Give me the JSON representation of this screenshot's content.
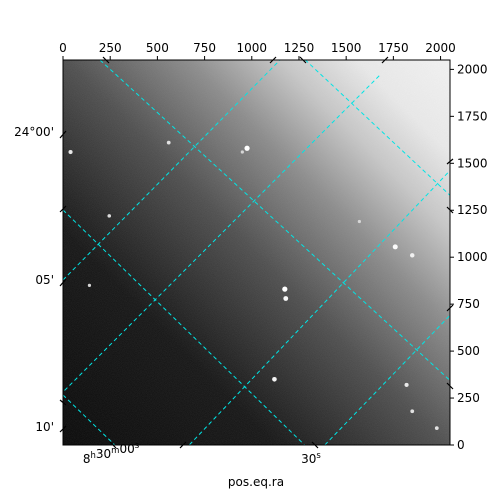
{
  "chart_data": {
    "type": "heatmap",
    "title": "",
    "xlabel": "pos.eq.ra",
    "ylabel": "",
    "pixel_axes": {
      "x_ticks": [
        0,
        250,
        500,
        750,
        1000,
        1250,
        1500,
        1750,
        2000
      ],
      "y_ticks": [
        0,
        250,
        500,
        750,
        1000,
        1250,
        1500,
        1750,
        2000
      ],
      "x_tick_labels": [
        "0",
        "250",
        "500",
        "750",
        "1000",
        "1250",
        "1500",
        "1750",
        "2000"
      ],
      "y_tick_labels": [
        "0",
        "250",
        "500",
        "750",
        "1000",
        "1250",
        "1500",
        "1750",
        "2000"
      ],
      "xlim": [
        0,
        2050
      ],
      "ylim": [
        0,
        2050
      ]
    },
    "world_axes": {
      "ra_tick_labels": [
        "8h30m00s",
        "30s"
      ],
      "dec_tick_labels": [
        "24°00'",
        "05'",
        "10'"
      ]
    },
    "grid": true,
    "grid_color": "#00e5e5",
    "colormap": "gray",
    "image_gradient": "dark lower-left to bright upper-right",
    "stars": [
      {
        "x": 975,
        "y": 1580,
        "brightness": 1.0
      },
      {
        "x": 1760,
        "y": 1055,
        "brightness": 0.95
      },
      {
        "x": 1175,
        "y": 830,
        "brightness": 1.0
      },
      {
        "x": 1180,
        "y": 780,
        "brightness": 0.9
      },
      {
        "x": 1850,
        "y": 1010,
        "brightness": 0.8
      },
      {
        "x": 40,
        "y": 1560,
        "brightness": 0.7
      },
      {
        "x": 560,
        "y": 1610,
        "brightness": 0.6
      },
      {
        "x": 245,
        "y": 1220,
        "brightness": 0.55
      },
      {
        "x": 1120,
        "y": 350,
        "brightness": 0.85
      },
      {
        "x": 1820,
        "y": 320,
        "brightness": 0.7
      },
      {
        "x": 1850,
        "y": 180,
        "brightness": 0.6
      },
      {
        "x": 1980,
        "y": 90,
        "brightness": 0.6
      },
      {
        "x": 950,
        "y": 1560,
        "brightness": 0.45
      },
      {
        "x": 140,
        "y": 850,
        "brightness": 0.45
      },
      {
        "x": 1570,
        "y": 1190,
        "brightness": 0.45
      }
    ]
  }
}
